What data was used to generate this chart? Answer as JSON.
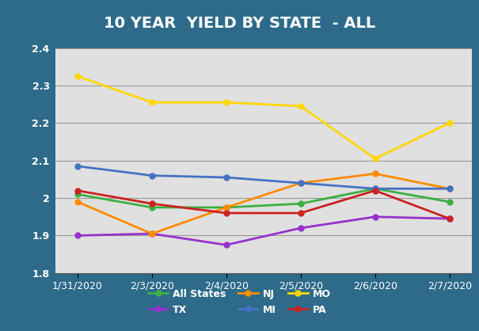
{
  "title": "10 YEAR  YIELD BY STATE  - ALL",
  "x_labels": [
    "1/31/2020",
    "2/3/2020",
    "2/4/2020",
    "2/5/2020",
    "2/6/2020",
    "2/7/2020"
  ],
  "ylim": [
    1.8,
    2.4
  ],
  "yticks": [
    1.8,
    1.9,
    2.0,
    2.1,
    2.2,
    2.3,
    2.4
  ],
  "series": {
    "All States": {
      "values": [
        2.01,
        1.975,
        1.975,
        1.985,
        2.025,
        1.99
      ],
      "color": "#3cb044",
      "marker": "o"
    },
    "TX": {
      "values": [
        1.9,
        1.905,
        1.875,
        1.92,
        1.95,
        1.945
      ],
      "color": "#9932cc",
      "marker": "o"
    },
    "NJ": {
      "values": [
        1.99,
        1.905,
        1.975,
        2.04,
        2.065,
        2.025
      ],
      "color": "#ff8c00",
      "marker": "o"
    },
    "MI": {
      "values": [
        2.085,
        2.06,
        2.055,
        2.04,
        2.025,
        2.025
      ],
      "color": "#4472c4",
      "marker": "o"
    },
    "MO": {
      "values": [
        2.325,
        2.255,
        2.255,
        2.245,
        2.105,
        2.2
      ],
      "color": "#ffd700",
      "marker": "o"
    },
    "PA": {
      "values": [
        2.02,
        1.985,
        1.96,
        1.96,
        2.02,
        1.945
      ],
      "color": "#cc2222",
      "marker": "o"
    }
  },
  "plot_bg_color": "#e0e0e0",
  "border_color": "#2e6b8a",
  "title_color": "#ffffff",
  "tick_label_color": "#ffffff",
  "grid_color": "#999999",
  "legend_order": [
    "All States",
    "TX",
    "NJ",
    "MI",
    "MO",
    "PA"
  ],
  "title_fontsize": 14,
  "tick_fontsize": 9,
  "legend_fontsize": 9
}
